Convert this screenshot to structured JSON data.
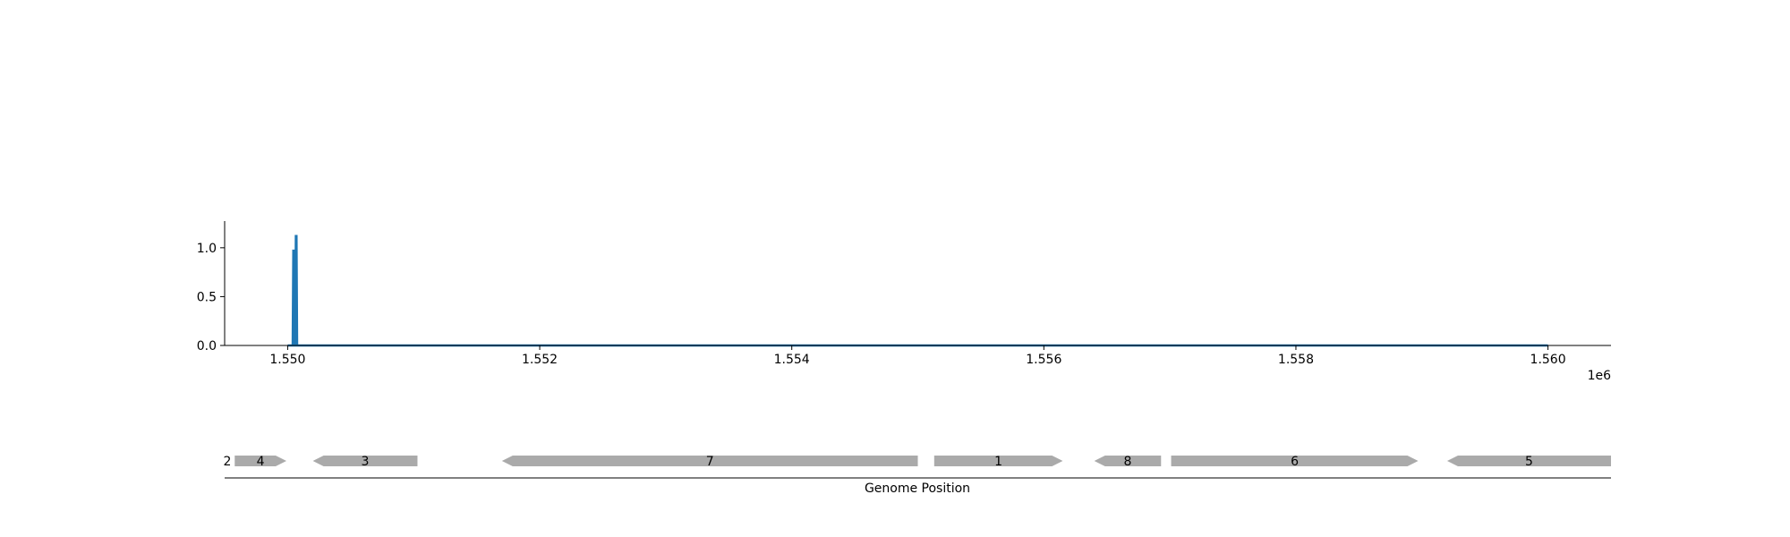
{
  "chart_data": [
    {
      "type": "line",
      "title": "",
      "xlabel": "",
      "ylabel": "",
      "x_offset_label": "1e6",
      "xlim": [
        1549500,
        1560500
      ],
      "ylim": [
        0,
        1.2
      ],
      "x_ticks": [
        1.55,
        1.552,
        1.554,
        1.556,
        1.558,
        1.56
      ],
      "x_tick_labels": [
        "1.550",
        "1.552",
        "1.554",
        "1.556",
        "1.558",
        "1.560"
      ],
      "y_ticks": [
        0.0,
        0.5,
        1.0
      ],
      "y_tick_labels": [
        "0.0",
        "0.5",
        "1.0"
      ],
      "grid": false,
      "color": "#1f77b4",
      "series": [
        {
          "x": [
            1550000,
            1550040,
            1550045,
            1550050,
            1550055,
            1550060,
            1550065,
            1550070,
            1550075,
            1560000
          ],
          "y": [
            0,
            0,
            0.97,
            0.97,
            0,
            0,
            1.12,
            1.12,
            0,
            0
          ]
        }
      ]
    },
    {
      "type": "gene-track",
      "xlabel": "Genome Position",
      "xlim": [
        1549500,
        1560500
      ],
      "color": "#aaaaaa",
      "genes": [
        {
          "label": "2",
          "start": 1549480,
          "end": 1549500,
          "strand": "+"
        },
        {
          "label": "4",
          "start": 1549580,
          "end": 1549990,
          "strand": "+"
        },
        {
          "label": "3",
          "start": 1550200,
          "end": 1551030,
          "strand": "-"
        },
        {
          "label": "7",
          "start": 1551700,
          "end": 1555000,
          "strand": "-"
        },
        {
          "label": "1",
          "start": 1555130,
          "end": 1556150,
          "strand": "+"
        },
        {
          "label": "8",
          "start": 1556400,
          "end": 1556930,
          "strand": "-"
        },
        {
          "label": "6",
          "start": 1557010,
          "end": 1558970,
          "strand": "+"
        },
        {
          "label": "5",
          "start": 1559200,
          "end": 1560500,
          "strand": "-"
        }
      ]
    }
  ]
}
